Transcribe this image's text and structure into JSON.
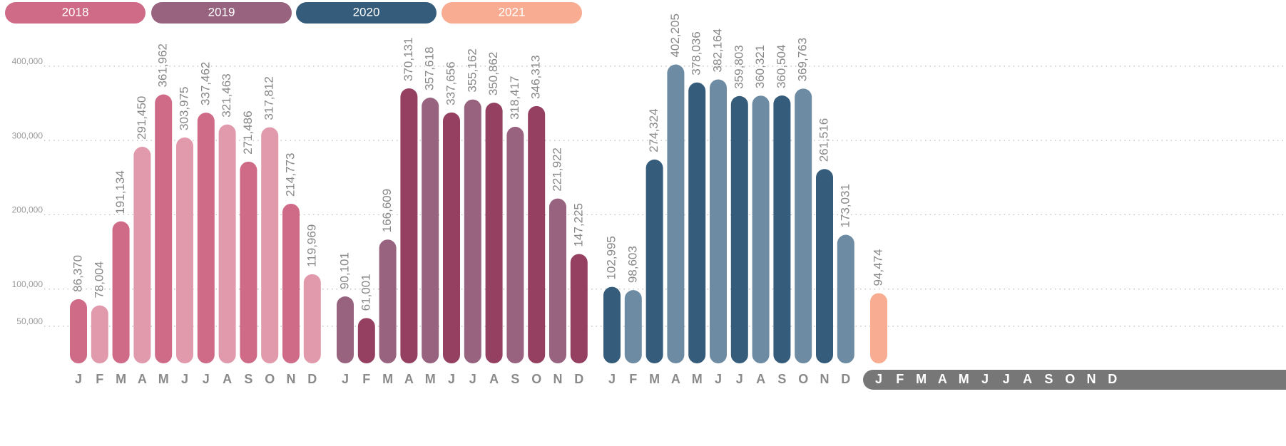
{
  "chart_data": {
    "type": "bar",
    "categories": [
      "J",
      "F",
      "M",
      "A",
      "M",
      "J",
      "J",
      "A",
      "S",
      "O",
      "N",
      "D"
    ],
    "series": [
      {
        "name": "2018",
        "color": "#cf6a87",
        "colors": [
          "#cf6a87",
          "#e09aab"
        ],
        "values": [
          86370,
          78004,
          191134,
          291450,
          361962,
          303975,
          337462,
          321463,
          271486,
          317812,
          214773,
          119969
        ],
        "value_labels": [
          "86,370",
          "78,004",
          "191,134",
          "291,450",
          "361,962",
          "303,975",
          "337,462",
          "321,463",
          "271,486",
          "317,812",
          "214,773",
          "119,969"
        ]
      },
      {
        "name": "2019",
        "color": "#98637f",
        "colors": [
          "#98637f",
          "#954060"
        ],
        "values": [
          90101,
          61001,
          166609,
          370131,
          357618,
          337656,
          355162,
          350862,
          318417,
          346313,
          221922,
          147225
        ],
        "value_labels": [
          "90,101",
          "61,001",
          "166,609",
          "370,131",
          "357,618",
          "337,656",
          "355,162",
          "350,862",
          "318,417",
          "346,313",
          "221,922",
          "147,225"
        ]
      },
      {
        "name": "2020",
        "color": "#355c7a",
        "colors": [
          "#355c7a",
          "#6d8ca4"
        ],
        "values": [
          102995,
          98603,
          274324,
          402205,
          378036,
          382164,
          359803,
          360321,
          360504,
          369763,
          261516,
          173031
        ],
        "value_labels": [
          "102,995",
          "98,603",
          "274,324",
          "402,205",
          "378,036",
          "382,164",
          "359,803",
          "360,321",
          "360,504",
          "369,763",
          "261,516",
          "173,031"
        ]
      },
      {
        "name": "2021",
        "color": "#f8ad93",
        "colors": [
          "#f8ad93",
          "#f8ad93"
        ],
        "values": [
          94474,
          null,
          null,
          null,
          null,
          null,
          null,
          null,
          null,
          null,
          null,
          null
        ],
        "value_labels": [
          "94,474",
          null,
          null,
          null,
          null,
          null,
          null,
          null,
          null,
          null,
          null,
          null
        ]
      }
    ],
    "ylim": [
      0,
      420000
    ],
    "yticks": [
      {
        "value": 50000,
        "label": "50,000"
      },
      {
        "value": 100000,
        "label": "100,000"
      },
      {
        "value": 200000,
        "label": "200,000"
      },
      {
        "value": 300000,
        "label": "300,000"
      },
      {
        "value": 400000,
        "label": "400,000"
      }
    ],
    "grid": true
  }
}
